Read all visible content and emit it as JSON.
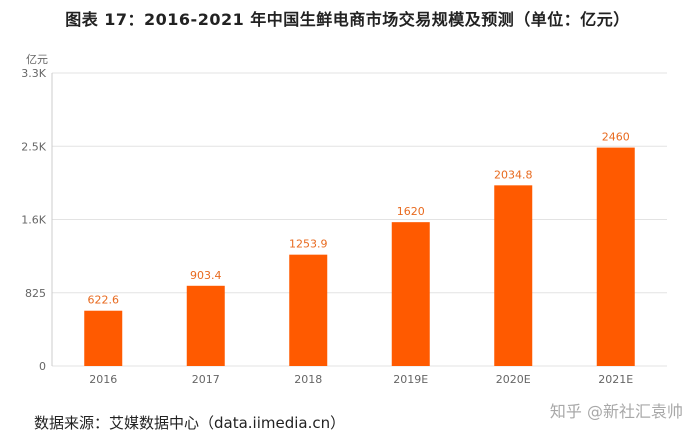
{
  "chart_data": {
    "type": "bar",
    "title": "图表 17：2016-2021 年中国生鲜电商市场交易规模及预测（单位：亿元）",
    "ylabel": "亿元",
    "categories": [
      "2016",
      "2017",
      "2018",
      "2019E",
      "2020E",
      "2021E"
    ],
    "values": [
      622.6,
      903.4,
      1253.9,
      1620,
      2034.8,
      2460
    ],
    "value_labels": [
      "622.6",
      "903.4",
      "1253.9",
      "1620",
      "2034.8",
      "2460"
    ],
    "yticks": [
      0,
      825,
      1650,
      2475,
      3300
    ],
    "ytick_labels": [
      "0",
      "825",
      "1.6K",
      "2.5K",
      "3.3K"
    ],
    "ylim": [
      0,
      3300
    ],
    "grid": true,
    "colors": {
      "bar": "#ff5a00",
      "value_label": "#e86a1f",
      "grid": "#e3e3e3",
      "axis_text": "#666666"
    }
  },
  "source": "数据来源：艾媒数据中心（data.iimedia.cn）",
  "watermark": "知乎 @新社汇袁帅"
}
